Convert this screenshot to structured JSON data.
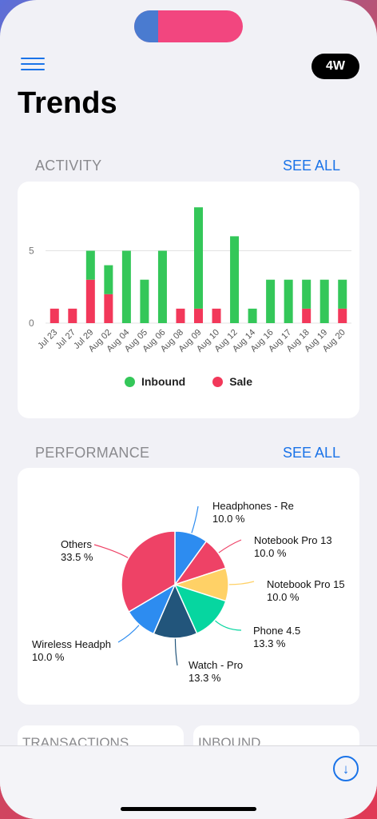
{
  "header": {
    "title": "Trends",
    "period": "4W"
  },
  "activity": {
    "section_title": "ACTIVITY",
    "see_all": "SEE ALL"
  },
  "performance": {
    "section_title": "PERFORMANCE",
    "see_all": "SEE ALL"
  },
  "bottom_cards": {
    "transactions": "TRANSACTIONS",
    "inbound": "INBOUND"
  },
  "icons": {
    "menu": "hamburger-menu-icon",
    "download": "arrow-down-circle-icon"
  },
  "colors": {
    "accent": "#1a73e8",
    "inbound": "#34c759",
    "sale": "#f2385a"
  },
  "chart_data": [
    {
      "type": "bar",
      "stacked": true,
      "categories": [
        "Jul 23",
        "Jul 27",
        "Jul 29",
        "Aug 02",
        "Aug 04",
        "Aug 05",
        "Aug 06",
        "Aug 08",
        "Aug 09",
        "Aug 10",
        "Aug 12",
        "Aug 14",
        "Aug 16",
        "Aug 17",
        "Aug 18",
        "Aug 19",
        "Aug 20"
      ],
      "series": [
        {
          "name": "Sale",
          "color": "#f2385a",
          "values": [
            1,
            1,
            3,
            2,
            0,
            0,
            0,
            1,
            1,
            1,
            0,
            0,
            0,
            0,
            1,
            0,
            1
          ]
        },
        {
          "name": "Inbound",
          "color": "#34c759",
          "values": [
            0,
            0,
            2,
            2,
            5,
            3,
            5,
            0,
            7,
            0,
            6,
            1,
            3,
            3,
            2,
            3,
            2
          ]
        }
      ],
      "yticks": [
        0,
        5
      ],
      "ylim": [
        0,
        8
      ],
      "grid": true,
      "legend": "bottom"
    },
    {
      "type": "pie",
      "slices": [
        {
          "label": "Headphones - Re",
          "pct": "10.0 %",
          "value": 10.0,
          "color": "#2d8cf0"
        },
        {
          "label": "Notebook Pro 13",
          "pct": "10.0 %",
          "value": 10.0,
          "color": "#ee4266"
        },
        {
          "label": "Notebook Pro 15",
          "pct": "10.0 %",
          "value": 10.0,
          "color": "#ffd166"
        },
        {
          "label": "Phone 4.5",
          "pct": "13.3 %",
          "value": 13.3,
          "color": "#06d6a0"
        },
        {
          "label": "Watch - Pro",
          "pct": "13.3 %",
          "value": 13.3,
          "color": "#22557b"
        },
        {
          "label": "Wireless Headph",
          "pct": "10.0 %",
          "value": 10.0,
          "color": "#2d8cf0"
        },
        {
          "label": "Others",
          "pct": "33.5 %",
          "value": 33.5,
          "color": "#ee4266"
        }
      ]
    }
  ]
}
